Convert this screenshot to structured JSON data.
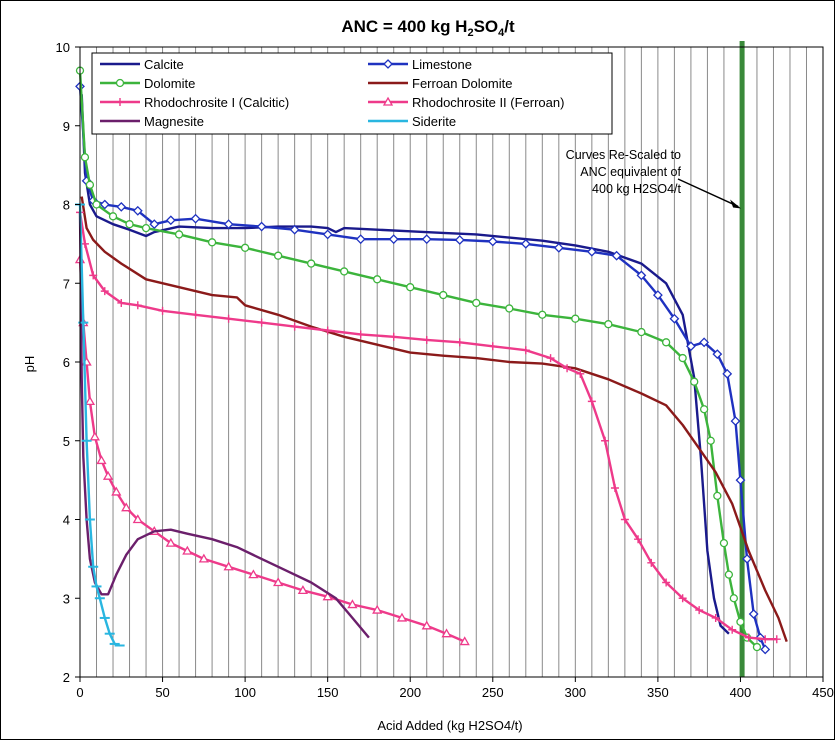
{
  "chart_data": {
    "type": "line",
    "title_main": "ANC = 400 kg H",
    "title_sub1": "2",
    "title_mid": "SO",
    "title_sub2": "4",
    "title_end": "/t",
    "xlabel": "Acid Added (kg H2SO4/t)",
    "ylabel": "pH",
    "xlim": [
      0,
      450
    ],
    "ylim": [
      2,
      10
    ],
    "x_ticks": [
      "0",
      "50",
      "100",
      "150",
      "200",
      "250",
      "300",
      "350",
      "400",
      "450"
    ],
    "y_ticks": [
      "2",
      "3",
      "4",
      "5",
      "6",
      "7",
      "8",
      "9",
      "10"
    ],
    "grid": "vertical every 10 units",
    "legend_position": "top-left",
    "vertical_marker": {
      "x": 401,
      "color": "#3a8a3a"
    },
    "annotation": {
      "lines": [
        "Curves Re-Scaled to",
        "ANC equivalent of",
        "400 kg H2SO4/t"
      ],
      "arrow_to": [
        401,
        7.95
      ]
    },
    "series": [
      {
        "name": "Calcite",
        "color": "#1a1a8c",
        "marker": "none",
        "points": [
          [
            1,
            9.4
          ],
          [
            3,
            8.4
          ],
          [
            6,
            8.0
          ],
          [
            10,
            7.85
          ],
          [
            20,
            7.75
          ],
          [
            30,
            7.68
          ],
          [
            40,
            7.6
          ],
          [
            45,
            7.65
          ],
          [
            60,
            7.72
          ],
          [
            80,
            7.7
          ],
          [
            100,
            7.7
          ],
          [
            120,
            7.72
          ],
          [
            140,
            7.72
          ],
          [
            150,
            7.7
          ],
          [
            155,
            7.65
          ],
          [
            160,
            7.7
          ],
          [
            180,
            7.68
          ],
          [
            200,
            7.66
          ],
          [
            220,
            7.64
          ],
          [
            240,
            7.62
          ],
          [
            260,
            7.58
          ],
          [
            280,
            7.54
          ],
          [
            300,
            7.48
          ],
          [
            320,
            7.4
          ],
          [
            340,
            7.25
          ],
          [
            355,
            7.0
          ],
          [
            365,
            6.6
          ],
          [
            372,
            5.8
          ],
          [
            376,
            4.8
          ],
          [
            380,
            3.6
          ],
          [
            384,
            3.0
          ],
          [
            388,
            2.65
          ],
          [
            393,
            2.55
          ]
        ]
      },
      {
        "name": "Limestone",
        "color": "#1f32c0",
        "marker": "diamond",
        "points": [
          [
            0,
            9.5
          ],
          [
            4,
            8.3
          ],
          [
            8,
            8.05
          ],
          [
            15,
            8.0
          ],
          [
            25,
            7.97
          ],
          [
            35,
            7.92
          ],
          [
            45,
            7.75
          ],
          [
            55,
            7.8
          ],
          [
            70,
            7.82
          ],
          [
            90,
            7.75
          ],
          [
            110,
            7.72
          ],
          [
            130,
            7.68
          ],
          [
            150,
            7.62
          ],
          [
            170,
            7.56
          ],
          [
            190,
            7.56
          ],
          [
            210,
            7.56
          ],
          [
            230,
            7.55
          ],
          [
            250,
            7.53
          ],
          [
            270,
            7.5
          ],
          [
            290,
            7.45
          ],
          [
            310,
            7.4
          ],
          [
            325,
            7.35
          ],
          [
            340,
            7.1
          ],
          [
            350,
            6.85
          ],
          [
            360,
            6.55
          ],
          [
            370,
            6.2
          ],
          [
            378,
            6.25
          ],
          [
            386,
            6.1
          ],
          [
            392,
            5.85
          ],
          [
            397,
            5.25
          ],
          [
            400,
            4.5
          ],
          [
            404,
            3.5
          ],
          [
            408,
            2.8
          ],
          [
            412,
            2.5
          ],
          [
            415,
            2.35
          ]
        ]
      },
      {
        "name": "Dolomite",
        "color": "#3cb43c",
        "marker": "circle",
        "points": [
          [
            0,
            9.7
          ],
          [
            3,
            8.6
          ],
          [
            6,
            8.25
          ],
          [
            10,
            8.0
          ],
          [
            20,
            7.85
          ],
          [
            30,
            7.75
          ],
          [
            40,
            7.7
          ],
          [
            60,
            7.62
          ],
          [
            80,
            7.52
          ],
          [
            100,
            7.45
          ],
          [
            120,
            7.35
          ],
          [
            140,
            7.25
          ],
          [
            160,
            7.15
          ],
          [
            180,
            7.05
          ],
          [
            200,
            6.95
          ],
          [
            220,
            6.85
          ],
          [
            240,
            6.75
          ],
          [
            260,
            6.68
          ],
          [
            280,
            6.6
          ],
          [
            300,
            6.55
          ],
          [
            320,
            6.48
          ],
          [
            340,
            6.38
          ],
          [
            355,
            6.25
          ],
          [
            365,
            6.05
          ],
          [
            372,
            5.75
          ],
          [
            378,
            5.4
          ],
          [
            382,
            5.0
          ],
          [
            386,
            4.3
          ],
          [
            390,
            3.7
          ],
          [
            393,
            3.3
          ],
          [
            396,
            3.0
          ],
          [
            400,
            2.7
          ],
          [
            404,
            2.5
          ],
          [
            410,
            2.38
          ]
        ]
      },
      {
        "name": "Ferroan Dolomite",
        "color": "#8b1a1a",
        "marker": "none",
        "points": [
          [
            1,
            8.1
          ],
          [
            4,
            7.7
          ],
          [
            8,
            7.55
          ],
          [
            15,
            7.4
          ],
          [
            25,
            7.25
          ],
          [
            40,
            7.05
          ],
          [
            60,
            6.95
          ],
          [
            80,
            6.85
          ],
          [
            95,
            6.82
          ],
          [
            100,
            6.72
          ],
          [
            120,
            6.6
          ],
          [
            140,
            6.45
          ],
          [
            160,
            6.32
          ],
          [
            180,
            6.22
          ],
          [
            200,
            6.12
          ],
          [
            220,
            6.08
          ],
          [
            240,
            6.05
          ],
          [
            260,
            6.0
          ],
          [
            280,
            5.98
          ],
          [
            300,
            5.92
          ],
          [
            320,
            5.78
          ],
          [
            340,
            5.6
          ],
          [
            355,
            5.45
          ],
          [
            365,
            5.2
          ],
          [
            375,
            4.9
          ],
          [
            385,
            4.6
          ],
          [
            395,
            4.2
          ],
          [
            405,
            3.6
          ],
          [
            415,
            3.1
          ],
          [
            423,
            2.75
          ],
          [
            428,
            2.45
          ]
        ]
      },
      {
        "name": "Rhodochrosite I (Calcitic)",
        "color": "#ee3a8a",
        "marker": "plus",
        "points": [
          [
            0,
            7.9
          ],
          [
            3,
            7.5
          ],
          [
            8,
            7.1
          ],
          [
            15,
            6.9
          ],
          [
            25,
            6.75
          ],
          [
            35,
            6.72
          ],
          [
            50,
            6.65
          ],
          [
            70,
            6.6
          ],
          [
            90,
            6.55
          ],
          [
            110,
            6.5
          ],
          [
            130,
            6.45
          ],
          [
            150,
            6.4
          ],
          [
            170,
            6.35
          ],
          [
            190,
            6.32
          ],
          [
            210,
            6.28
          ],
          [
            230,
            6.25
          ],
          [
            250,
            6.2
          ],
          [
            270,
            6.15
          ],
          [
            285,
            6.05
          ],
          [
            295,
            5.92
          ],
          [
            303,
            5.85
          ],
          [
            310,
            5.5
          ],
          [
            318,
            5.0
          ],
          [
            324,
            4.4
          ],
          [
            330,
            4.0
          ],
          [
            338,
            3.75
          ],
          [
            346,
            3.45
          ],
          [
            355,
            3.2
          ],
          [
            365,
            3.0
          ],
          [
            375,
            2.85
          ],
          [
            385,
            2.75
          ],
          [
            395,
            2.6
          ],
          [
            405,
            2.5
          ],
          [
            415,
            2.48
          ],
          [
            422,
            2.48
          ]
        ]
      },
      {
        "name": "Rhodochrosite II (Ferroan)",
        "color": "#ee3a8a",
        "marker": "triangle",
        "points": [
          [
            0,
            7.3
          ],
          [
            2,
            6.5
          ],
          [
            4,
            6.0
          ],
          [
            6,
            5.5
          ],
          [
            9,
            5.05
          ],
          [
            13,
            4.75
          ],
          [
            17,
            4.55
          ],
          [
            22,
            4.35
          ],
          [
            28,
            4.15
          ],
          [
            35,
            4.0
          ],
          [
            45,
            3.85
          ],
          [
            55,
            3.7
          ],
          [
            65,
            3.6
          ],
          [
            75,
            3.5
          ],
          [
            90,
            3.4
          ],
          [
            105,
            3.3
          ],
          [
            120,
            3.2
          ],
          [
            135,
            3.1
          ],
          [
            150,
            3.02
          ],
          [
            165,
            2.92
          ],
          [
            180,
            2.85
          ],
          [
            195,
            2.75
          ],
          [
            210,
            2.65
          ],
          [
            222,
            2.55
          ],
          [
            233,
            2.45
          ]
        ]
      },
      {
        "name": "Magnesite",
        "color": "#6b1f6b",
        "marker": "none",
        "points": [
          [
            0,
            7.9
          ],
          [
            1,
            5.8
          ],
          [
            2,
            4.8
          ],
          [
            4,
            4.0
          ],
          [
            6,
            3.5
          ],
          [
            9,
            3.2
          ],
          [
            13,
            3.05
          ],
          [
            17,
            3.05
          ],
          [
            22,
            3.3
          ],
          [
            28,
            3.55
          ],
          [
            35,
            3.75
          ],
          [
            45,
            3.85
          ],
          [
            55,
            3.87
          ],
          [
            65,
            3.82
          ],
          [
            80,
            3.75
          ],
          [
            95,
            3.65
          ],
          [
            110,
            3.5
          ],
          [
            125,
            3.35
          ],
          [
            140,
            3.2
          ],
          [
            155,
            3.0
          ],
          [
            165,
            2.75
          ],
          [
            175,
            2.5
          ]
        ]
      },
      {
        "name": "Siderite",
        "color": "#29b6e0",
        "marker": "dash",
        "points": [
          [
            0,
            8.0
          ],
          [
            2,
            6.5
          ],
          [
            4,
            5.0
          ],
          [
            6,
            4.0
          ],
          [
            8,
            3.4
          ],
          [
            10,
            3.15
          ],
          [
            12,
            3.0
          ],
          [
            15,
            2.75
          ],
          [
            18,
            2.55
          ],
          [
            21,
            2.42
          ],
          [
            24,
            2.4
          ]
        ]
      }
    ]
  }
}
